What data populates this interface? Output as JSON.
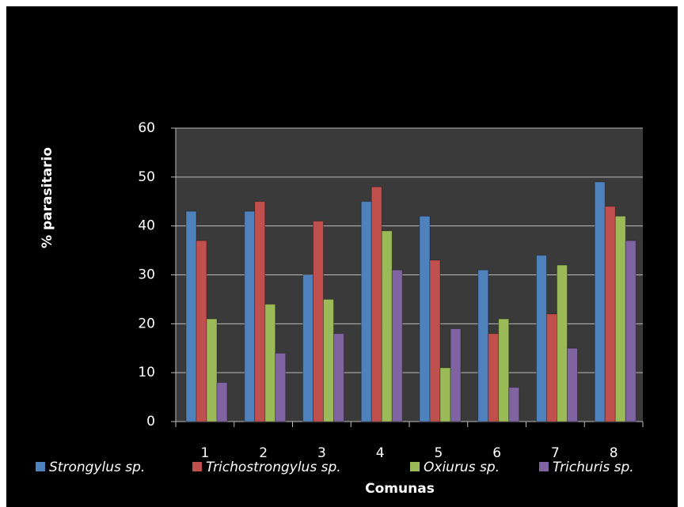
{
  "chart_data": {
    "type": "bar",
    "categories": [
      "1",
      "2",
      "3",
      "4",
      "5",
      "6",
      "7",
      "8"
    ],
    "series": [
      {
        "name": "Strongylus sp.",
        "color": "#4f81bd",
        "values": [
          43,
          43,
          30,
          45,
          42,
          31,
          34,
          49
        ]
      },
      {
        "name": "Trichostrongylus sp.",
        "color": "#c0504d",
        "values": [
          37,
          45,
          41,
          48,
          33,
          18,
          22,
          44
        ]
      },
      {
        "name": "Oxiurus sp.",
        "color": "#9bbb59",
        "values": [
          21,
          24,
          25,
          39,
          11,
          21,
          32,
          42
        ]
      },
      {
        "name": "Trichuris sp.",
        "color": "#8064a2",
        "values": [
          8,
          14,
          18,
          31,
          19,
          7,
          15,
          37
        ]
      }
    ],
    "x_label": "Comunas",
    "y_label": "% parasitario",
    "ylim": [
      0,
      60
    ],
    "yticks": [
      0,
      10,
      20,
      30,
      40,
      50,
      60
    ],
    "grid": true,
    "legend": "bottom"
  }
}
